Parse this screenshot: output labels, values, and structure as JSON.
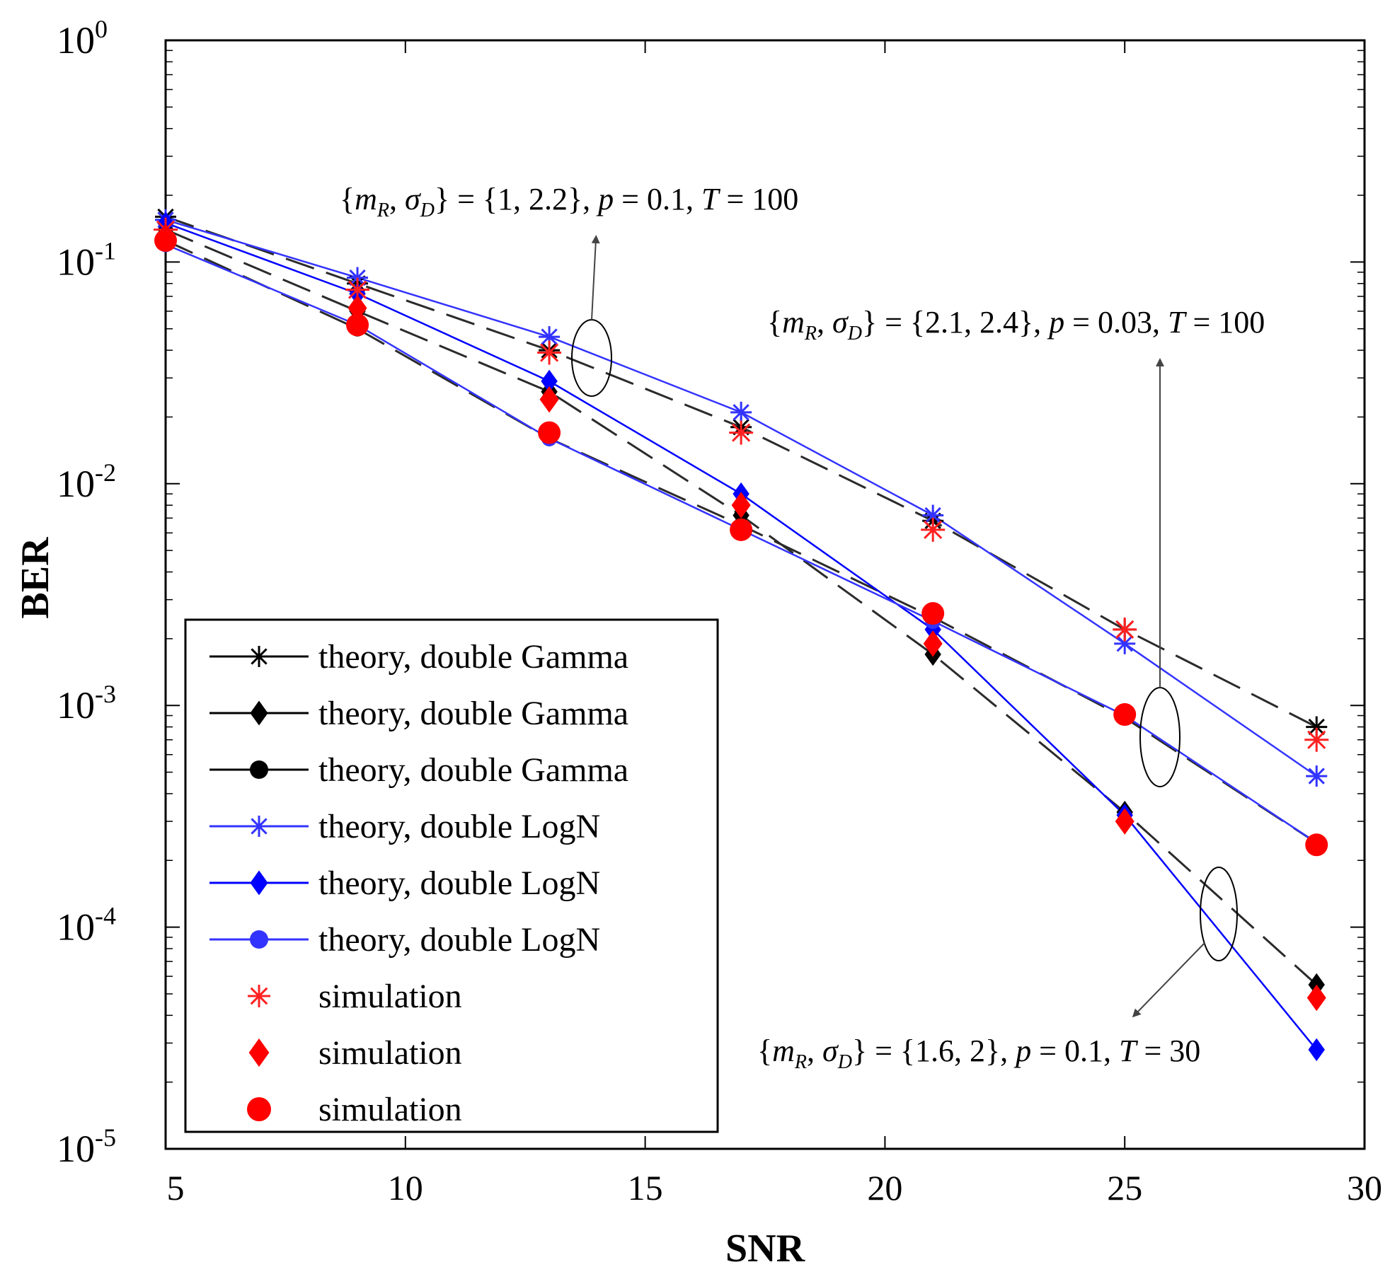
{
  "chart_data": {
    "type": "line",
    "xlabel": "SNR",
    "ylabel": "BER",
    "xlim": [
      5,
      30
    ],
    "ylim": [
      1e-05,
      1
    ],
    "yscale": "log",
    "grid": false,
    "legend_position": "bottom-left",
    "x_ticks": [
      "5",
      "10",
      "15",
      "20",
      "25",
      "30"
    ],
    "y_ticks": [
      {
        "base": "10",
        "exp": "0"
      },
      {
        "base": "10",
        "exp": "-1"
      },
      {
        "base": "10",
        "exp": "-2"
      },
      {
        "base": "10",
        "exp": "-3"
      },
      {
        "base": "10",
        "exp": "-4"
      },
      {
        "base": "10",
        "exp": "-5"
      }
    ],
    "x": [
      5,
      9,
      13,
      17,
      21,
      25,
      29
    ],
    "series": [
      {
        "name": "theory, double Gamma",
        "color": "#000000",
        "marker": "star",
        "dashed": true,
        "values": [
          0.16,
          0.08,
          0.04,
          0.018,
          0.0068,
          0.0022,
          0.0008
        ]
      },
      {
        "name": "theory, double Gamma",
        "color": "#000000",
        "marker": "diamond",
        "dashed": true,
        "values": [
          0.14,
          0.06,
          0.026,
          0.0072,
          0.0017,
          0.00033,
          5.5e-05
        ]
      },
      {
        "name": "theory, double Gamma",
        "color": "#000000",
        "marker": "circle",
        "dashed": true,
        "values": [
          0.125,
          0.05,
          0.016,
          0.0065,
          0.0025,
          0.00088,
          0.00024
        ]
      },
      {
        "name": "theory, double LogN",
        "color": "#3333ff",
        "marker": "star",
        "dashed": false,
        "values": [
          0.155,
          0.085,
          0.046,
          0.021,
          0.0072,
          0.0019,
          0.00048
        ]
      },
      {
        "name": "theory, double LogN",
        "color": "#0000ff",
        "marker": "diamond",
        "dashed": false,
        "values": [
          0.15,
          0.072,
          0.029,
          0.009,
          0.0022,
          0.00032,
          2.8e-05
        ]
      },
      {
        "name": "theory, double LogN",
        "color": "#3333ff",
        "marker": "circle",
        "dashed": false,
        "values": [
          0.12,
          0.052,
          0.016,
          0.0062,
          0.0024,
          0.0009,
          0.00024
        ]
      },
      {
        "name": "simulation",
        "color": "#ff2020",
        "marker": "star",
        "dashed": false,
        "scatter": true,
        "values": [
          0.14,
          0.075,
          0.039,
          0.017,
          0.0062,
          0.0022,
          0.0007
        ]
      },
      {
        "name": "simulation",
        "color": "#ff0000",
        "marker": "diamond",
        "dashed": false,
        "scatter": true,
        "values": [
          0.13,
          0.062,
          0.024,
          0.008,
          0.0019,
          0.0003,
          4.8e-05
        ]
      },
      {
        "name": "simulation",
        "color": "#ff0000",
        "marker": "circle",
        "dashed": false,
        "scatter": true,
        "values": [
          0.125,
          0.052,
          0.017,
          0.0062,
          0.0026,
          0.00091,
          0.000235
        ]
      }
    ],
    "annotations": [
      {
        "text": "{m_R, σ_D} = {1,  2.2}, p = 0.1,  T = 100",
        "parts": {
          "open": "{",
          "m": "m",
          "mSub": "R",
          "comma": ", ",
          "sigma": "σ",
          "sigSub": "D",
          "rest": "} = {1,  2.2}, ",
          "p": "p",
          "pval": " = 0.1,  ",
          "T": "T",
          "tval": " = 100"
        }
      },
      {
        "text": "{m_R, σ_D} = {2.1,  2.4}, p = 0.03,  T = 100",
        "parts": {
          "open": "{",
          "m": "m",
          "mSub": "R",
          "comma": ", ",
          "sigma": "σ",
          "sigSub": "D",
          "rest": "} = {2.1,  2.4}, ",
          "p": "p",
          "pval": " = 0.03,  ",
          "T": "T",
          "tval": " = 100"
        }
      },
      {
        "text": "{m_R, σ_D} = {1.6,  2}, p = 0.1,  T = 30",
        "parts": {
          "open": "{",
          "m": "m",
          "mSub": "R",
          "comma": ", ",
          "sigma": "σ",
          "sigSub": "D",
          "rest": "} = {1.6,  2}, ",
          "p": "p",
          "pval": " = 0.1,  ",
          "T": "T",
          "tval": " = 30"
        }
      }
    ]
  }
}
